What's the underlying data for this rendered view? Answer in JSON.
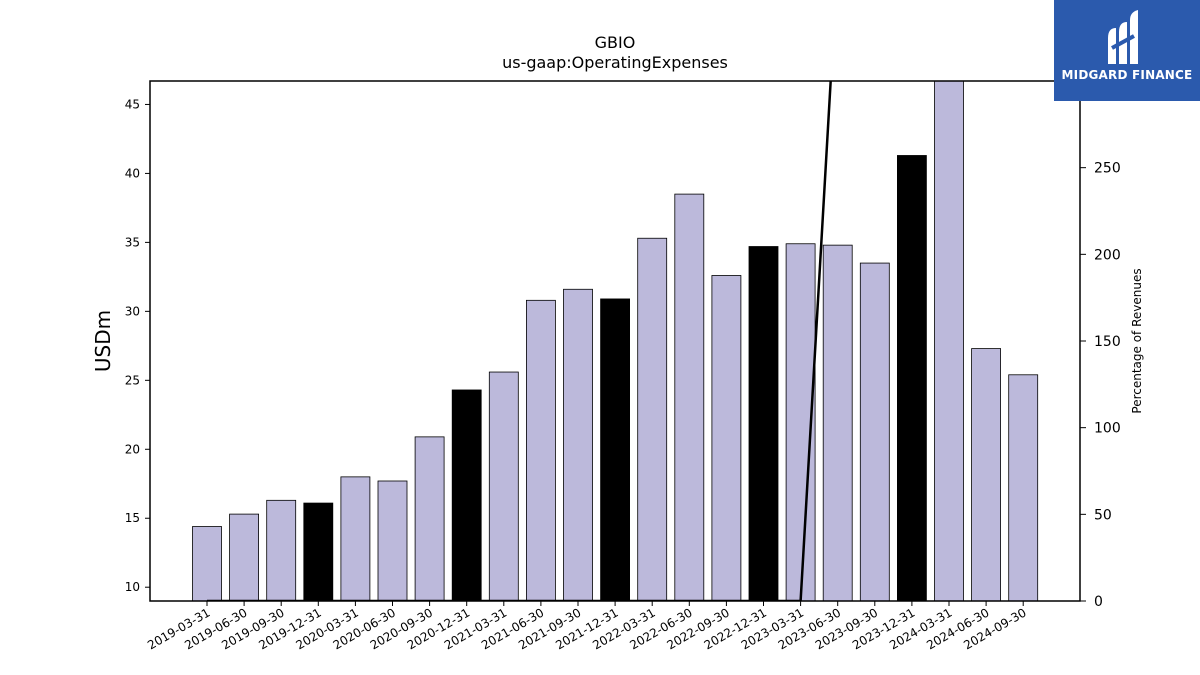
{
  "chart_data": {
    "type": "bar",
    "title": "GBIO",
    "subtitle": "us-gaap:OperatingExpenses",
    "ylabel": "USDm",
    "y2label": "Percentage of Revenues",
    "ylim": [
      9,
      46.7
    ],
    "y2lim": [
      0,
      300
    ],
    "yticks": [
      10,
      15,
      20,
      25,
      30,
      35,
      40,
      45
    ],
    "y2ticks": [
      0,
      50,
      100,
      150,
      200,
      250,
      300
    ],
    "categories": [
      "2019-03-31",
      "2019-06-30",
      "2019-09-30",
      "2019-12-31",
      "2020-03-31",
      "2020-06-30",
      "2020-09-30",
      "2020-12-31",
      "2021-03-31",
      "2021-06-30",
      "2021-09-30",
      "2021-12-31",
      "2022-03-31",
      "2022-06-30",
      "2022-09-30",
      "2022-12-31",
      "2023-03-31",
      "2023-06-30",
      "2023-09-30",
      "2023-12-31",
      "2024-03-31",
      "2024-06-30",
      "2024-09-30"
    ],
    "series": [
      {
        "values": [
          14.4,
          15.3,
          16.3,
          16.1,
          18.0,
          17.7,
          20.9,
          24.3,
          25.6,
          30.8,
          31.6,
          30.9,
          35.3,
          38.5,
          32.6,
          34.7,
          34.9,
          34.8,
          33.5,
          41.3,
          47.0,
          27.3,
          25.4
        ],
        "highlight": [
          false,
          false,
          false,
          true,
          false,
          false,
          false,
          true,
          false,
          false,
          false,
          true,
          false,
          false,
          false,
          true,
          false,
          false,
          false,
          true,
          false,
          false,
          false
        ]
      },
      {
        "axis": "right",
        "type": "line",
        "values": [
          0,
          0,
          0,
          0,
          0,
          0,
          0,
          0,
          0,
          0,
          0,
          0,
          0,
          0,
          0,
          0,
          0,
          370,
          null,
          null,
          null,
          null,
          null
        ]
      }
    ],
    "grid": false,
    "colors": {
      "bar": "#bcb9db",
      "highlight": "#000000",
      "line": "#000000"
    }
  },
  "logo": {
    "text": "MIDGARD FINANCE"
  }
}
